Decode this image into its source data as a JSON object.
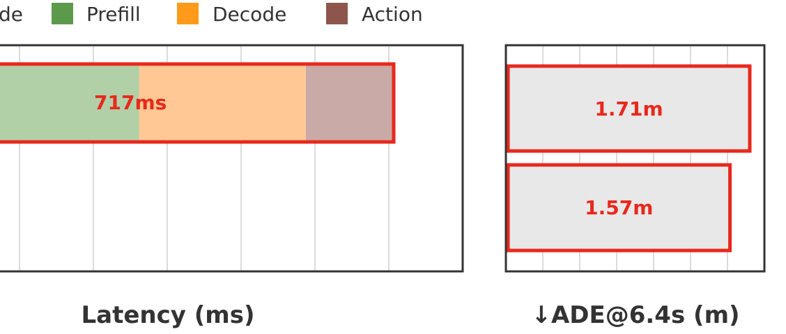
{
  "legend": [
    {
      "name": "Encode",
      "color": "#9ec5e8",
      "visible_text": "de"
    },
    {
      "name": "Prefill",
      "color": "#5b9a4a",
      "visible_text": "Prefill"
    },
    {
      "name": "Decode",
      "color": "#ff9a1a",
      "visible_text": "Decode"
    },
    {
      "name": "Action",
      "color": "#8e554c",
      "visible_text": "Action"
    }
  ],
  "highlight_color": "#e8281c",
  "chart_data": [
    {
      "type": "bar",
      "orientation": "horizontal",
      "stacked": true,
      "title": "",
      "xlabel": "Latency (ms)",
      "ylabel": "",
      "grid": true,
      "segment_colors": [
        "#b1d0a7",
        "#ffc895",
        "#c9aaa6"
      ],
      "bars": [
        {
          "label": "717ms",
          "segments": [
            {
              "series": "Prefill",
              "end": 320
            },
            {
              "series": "Decode",
              "end": 580
            },
            {
              "series": "Action",
              "end": 717
            }
          ],
          "highlighted": true
        }
      ]
    },
    {
      "type": "bar",
      "orientation": "horizontal",
      "title": "",
      "xlabel": "↓ADE@6.4s (m)",
      "ylabel": "",
      "grid": true,
      "bar_color": "#e8e8e8",
      "bars": [
        {
          "label": "1.71m",
          "value": 1.71,
          "highlighted": true
        },
        {
          "label": "1.57m",
          "value": 1.57,
          "highlighted": true
        }
      ]
    }
  ]
}
